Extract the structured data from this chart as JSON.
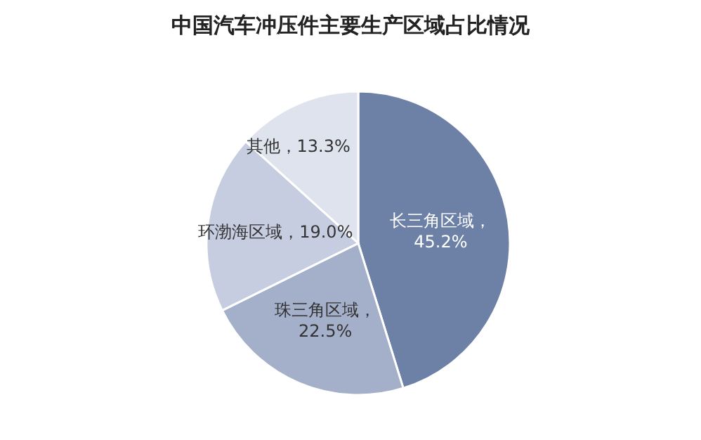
{
  "chart_data": {
    "type": "pie",
    "title": "中国汽车冲压件主要生产区域占比情况",
    "categories": [
      "长三角区域",
      "珠三角区域",
      "环渤海区域",
      "其他"
    ],
    "values": [
      45.2,
      22.5,
      19.0,
      13.3
    ],
    "colors": [
      "#6d80a6",
      "#a4afca",
      "#c6cde0",
      "#dfe3ed"
    ],
    "value_labels": [
      "，45.2%",
      "，22.5%",
      "，19.0%",
      "，13.3%"
    ],
    "legend": false
  }
}
